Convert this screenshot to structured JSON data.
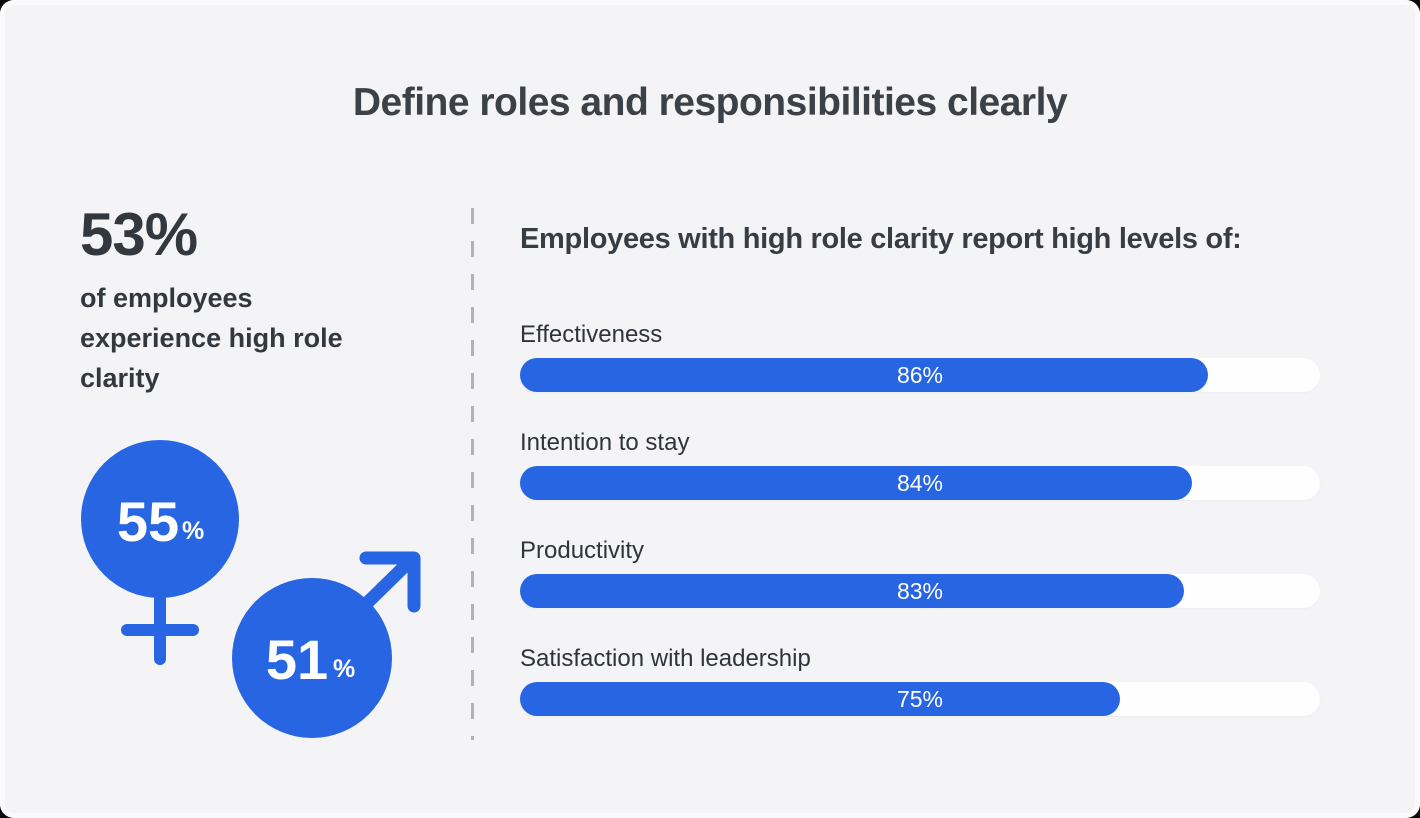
{
  "page": {
    "title": "Define roles and responsibilities clearly",
    "background_color": "#f4f4f6"
  },
  "colors": {
    "accent_blue": "#2765e3",
    "bar_track_white": "#fefefe",
    "text_dark": "#33383e",
    "divider_gray": "#b2b2b5",
    "bar_value_text": "#ffffff"
  },
  "left_panel": {
    "headline_stat": {
      "value": "53%",
      "description": "of employees experience high role clarity"
    },
    "gender_breakdown": [
      {
        "group": "women",
        "icon": "female-symbol-icon",
        "value": "55",
        "unit": "%"
      },
      {
        "group": "men",
        "icon": "male-symbol-icon",
        "value": "51",
        "unit": "%"
      }
    ]
  },
  "right_panel": {
    "heading": "Employees with high role clarity report high levels of:",
    "bars": [
      {
        "label": "Effectiveness",
        "value": 86,
        "display": "86%"
      },
      {
        "label": "Intention to stay",
        "value": 84,
        "display": "84%"
      },
      {
        "label": "Productivity",
        "value": 83,
        "display": "83%"
      },
      {
        "label": "Satisfaction with leadership",
        "value": 75,
        "display": "75%"
      }
    ]
  },
  "chart_data": {
    "type": "bar",
    "orientation": "horizontal",
    "title": "Employees with high role clarity report high levels of:",
    "categories": [
      "Effectiveness",
      "Intention to stay",
      "Productivity",
      "Satisfaction with leadership"
    ],
    "values": [
      86,
      84,
      83,
      75
    ],
    "value_labels": [
      "86%",
      "84%",
      "83%",
      "75%"
    ],
    "unit": "percent",
    "xlim": [
      0,
      100
    ],
    "grid": false,
    "legend": "none",
    "bar_color": "#2765e3",
    "track_color": "#fefefe",
    "context_stats": {
      "overall_high_role_clarity_pct": 53,
      "women_high_role_clarity_pct": 55,
      "men_high_role_clarity_pct": 51
    }
  }
}
